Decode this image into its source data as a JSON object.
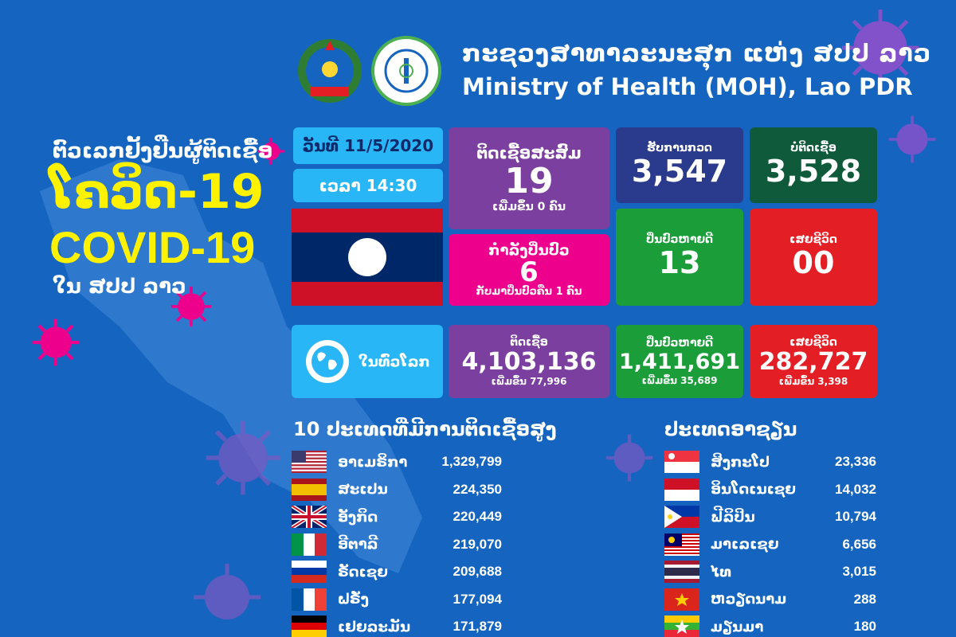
{
  "header": {
    "ministry_lao": "ກະຊວງສາທາລະນະສຸກ ແຫ່ງ ສປປ ລາວ",
    "ministry_en": "Ministry of Health (MOH), Lao PDR"
  },
  "title": {
    "line1": "ຕົວເລກຢັ້ງຢືນຜູ້ຕິດເຊື້ອ",
    "line2": "ໂຄວິດ-19",
    "line3": "COVID-19",
    "line4": "ໃນ ສປປ ລາວ"
  },
  "lao_stats": {
    "date": "ວັນທີ 11/5/2020",
    "time": "ເວລາ 14:30",
    "cumulative_label": "ຕິດເຊື້ອສະສົມ",
    "cumulative_value": "19",
    "cumulative_sub": "ເພີ່ມຂຶ້ນ 0 ຄົນ",
    "active_label": "ກຳລັງປິ່ນປົວ",
    "active_value": "6",
    "active_sub": "ກັບມາປິ່ນປົວຄືນ 1 ຄົນ",
    "tested_label": "ຮັບການກວດ",
    "tested_value": "3,547",
    "negative_label": "ບໍ່ຕິດເຊື້ອ",
    "negative_value": "3,528",
    "recovered_label": "ປິ່ນປົວຫາຍດີ",
    "recovered_value": "13",
    "deaths_label": "ເສຍຊີວິດ",
    "deaths_value": "00"
  },
  "world_stats": {
    "label": "ໃນທົ່ວໂລກ",
    "infected_label": "ຕິດເຊື້ອ",
    "infected_value": "4,103,136",
    "infected_sub": "ເພີ່ມຂຶ້ນ 77,996",
    "recovered_label": "ປິ່ນປົວຫາຍດີ",
    "recovered_value": "1,411,691",
    "recovered_sub": "ເພີ່ມຂຶ້ນ 35,689",
    "deaths_label": "ເສຍຊີວິດ",
    "deaths_value": "282,727",
    "deaths_sub": "ເພີ່ມຂຶ້ນ 3,398"
  },
  "top10": {
    "title": "10 ປະເທດທີ່ມີການຕິດເຊື້ອສູງ",
    "rows": [
      {
        "name": "ອາເມຣິກາ",
        "value": "1,329,799",
        "flag": "usa"
      },
      {
        "name": "ສະເປນ",
        "value": "224,350",
        "flag": "spain"
      },
      {
        "name": "ອັງກິດ",
        "value": "220,449",
        "flag": "uk"
      },
      {
        "name": "ອີຕາລີ",
        "value": "219,070",
        "flag": "italy"
      },
      {
        "name": "ຣັດເຊຍ",
        "value": "209,688",
        "flag": "russia"
      },
      {
        "name": "ຝຣັ່ງ",
        "value": "177,094",
        "flag": "france"
      },
      {
        "name": "ເຢຍລະມັນ",
        "value": "171,879",
        "flag": "germany"
      }
    ]
  },
  "asean": {
    "title": "ປະເທດອາຊຽນ",
    "rows": [
      {
        "name": "ສິງກະໂປ",
        "value": "23,336",
        "flag": "singapore"
      },
      {
        "name": "ອິນໂດເນເຊຍ",
        "value": "14,032",
        "flag": "indonesia"
      },
      {
        "name": "ຟີລິປິນ",
        "value": "10,794",
        "flag": "philippines"
      },
      {
        "name": "ມາເລເຊຍ",
        "value": "6,656",
        "flag": "malaysia"
      },
      {
        "name": "ໄທ",
        "value": "3,015",
        "flag": "thailand"
      },
      {
        "name": "ຫວຽດນາມ",
        "value": "288",
        "flag": "vietnam"
      },
      {
        "name": "ມຽນມາ",
        "value": "180",
        "flag": "myanmar"
      }
    ]
  },
  "colors": {
    "background": "#1565c0",
    "accent_yellow": "#fff200",
    "purple": "#7b3fa0",
    "magenta": "#ec008c",
    "green": "#1b9e3a",
    "red": "#e31e24",
    "light_blue": "#29b6f6"
  }
}
